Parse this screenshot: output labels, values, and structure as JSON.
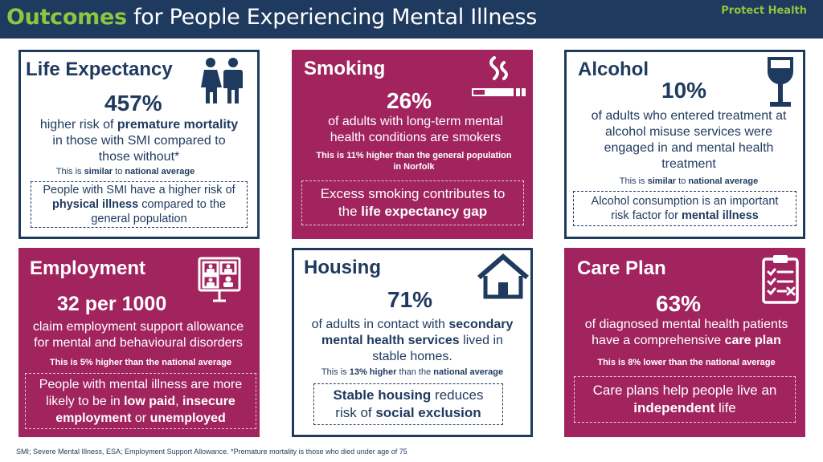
{
  "header": {
    "title_accent": "Outcomes",
    "title_rest": "for People Experiencing Mental Illness",
    "tag": "Protect Health"
  },
  "life_expectancy": {
    "heading": "Life Expectancy",
    "stat": "457%",
    "body_line1_pre": "higher risk of ",
    "body_line1_bold": "premature mortality",
    "body_line2": "in those with SMI compared to",
    "body_line3": "those without*",
    "note_pre": "This is ",
    "note_bold1": "similar",
    "note_mid": " to ",
    "note_bold2": "national average",
    "callout_line1": "People with SMI have a higher risk of",
    "callout_line2_bold": "physical illness",
    "callout_line2_rest": " compared to the",
    "callout_line3": "general population"
  },
  "smoking": {
    "heading": "Smoking",
    "stat": "26%",
    "body_line1": "of adults with long-term mental",
    "body_line2": "health conditions are smokers",
    "note_line1": "This is 11% higher than the general population",
    "note_line2": "in Norfolk",
    "callout_line1": "Excess smoking contributes to",
    "callout_line2_pre": "the ",
    "callout_line2_bold": "life expectancy gap"
  },
  "alcohol": {
    "heading": "Alcohol",
    "stat": "10%",
    "body_line1": "of adults who entered treatment at",
    "body_line2": "alcohol misuse services were",
    "body_line3": "engaged in and mental health",
    "body_line4": "treatment",
    "note_pre": "This is ",
    "note_bold1": "similar",
    "note_mid": " to ",
    "note_bold2": "national average",
    "callout_line1": "Alcohol consumption is an important",
    "callout_line2_pre": "risk factor for ",
    "callout_line2_bold": "mental illness"
  },
  "employment": {
    "heading": "Employment",
    "stat": "32 per 1000",
    "body_line1": "claim employment support allowance",
    "body_line2": "for mental and behavioural disorders",
    "note": "This is 5% higher than the national average",
    "callout_line1": "People with mental illness are more",
    "callout_line2_pre": "likely to be in ",
    "callout_line2_bold1": "low paid",
    "callout_line2_mid": ", ",
    "callout_line2_bold2": "insecure",
    "callout_line3_bold1": "employment",
    "callout_line3_mid": " or ",
    "callout_line3_bold2": "unemployed"
  },
  "housing": {
    "heading": "Housing",
    "stat": "71%",
    "body_line1_pre": "of adults in contact with ",
    "body_line1_bold": "secondary",
    "body_line2_bold": "mental health services",
    "body_line2_rest": " lived in",
    "body_line3": "stable homes.",
    "note_pre": "This is ",
    "note_bold1": "13% higher",
    "note_mid": " than the ",
    "note_bold2": "national average",
    "callout_line1_bold": "Stable housing",
    "callout_line1_rest": " reduces",
    "callout_line2_pre": "risk of ",
    "callout_line2_bold": "social exclusion"
  },
  "care_plan": {
    "heading": "Care Plan",
    "stat": "63%",
    "body_line1": "of diagnosed mental health patients",
    "body_line2_pre": "have a comprehensive ",
    "body_line2_bold": "care plan",
    "note": "This is 8% lower than the national average",
    "callout_line1": "Care plans help people live an",
    "callout_line2_bold": "independent",
    "callout_line2_rest": " life"
  },
  "footer": {
    "text": "SMI; Severe Mental Illness, ESA; Employment Support Allowance. *Premature mortality is those who died under age of 75"
  },
  "colors": {
    "navy": "#1f3a5f",
    "wine": "#a1245f",
    "green": "#8dc63f"
  },
  "icons": {
    "life_expectancy": "people-icon",
    "smoking": "cigarette-icon",
    "alcohol": "wine-glass-icon",
    "employment": "video-call-icon",
    "housing": "house-icon",
    "care_plan": "clipboard-checklist-icon"
  }
}
